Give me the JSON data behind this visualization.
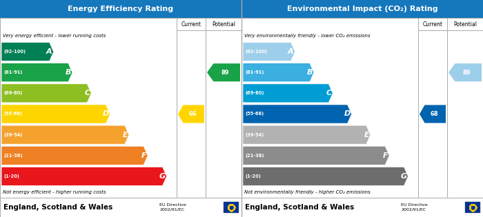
{
  "left_title": "Energy Efficiency Rating",
  "right_title": "Environmental Impact (CO₂) Rating",
  "header_bg": "#1577bc",
  "bands": [
    {
      "label": "A",
      "range": "(92-100)",
      "epc_color": "#008054",
      "co2_color": "#9ecfea"
    },
    {
      "label": "B",
      "range": "(81-91)",
      "epc_color": "#19a247",
      "co2_color": "#3aafe0"
    },
    {
      "label": "C",
      "range": "(69-80)",
      "epc_color": "#8dbe22",
      "co2_color": "#009dd4"
    },
    {
      "label": "D",
      "range": "(55-68)",
      "epc_color": "#ffd500",
      "co2_color": "#0063af"
    },
    {
      "label": "E",
      "range": "(39-54)",
      "epc_color": "#f5a12e",
      "co2_color": "#b2b2b2"
    },
    {
      "label": "F",
      "range": "(21-38)",
      "epc_color": "#ef8023",
      "co2_color": "#8c8c8c"
    },
    {
      "label": "G",
      "range": "(1-20)",
      "epc_color": "#e9161c",
      "co2_color": "#6d6d6d"
    }
  ],
  "epc_current": 66,
  "epc_potential": 89,
  "co2_current": 68,
  "co2_potential": 89,
  "current_color_epc": "#ffd500",
  "potential_color_epc": "#19a247",
  "current_color_co2": "#0063af",
  "potential_color_co2": "#9ecfea",
  "footer_text": "England, Scotland & Wales",
  "eu_text": "EU Directive\n2002/91/EC",
  "top_text_epc": "Very energy efficient - lower running costs",
  "bottom_text_epc": "Not energy efficient - higher running costs",
  "top_text_co2": "Very environmentally friendly - lower CO₂ emissions",
  "bottom_text_co2": "Not environmentally friendly - higher CO₂ emissions",
  "band_ranges": [
    [
      92,
      100
    ],
    [
      81,
      91
    ],
    [
      69,
      80
    ],
    [
      55,
      68
    ],
    [
      39,
      54
    ],
    [
      21,
      38
    ],
    [
      1,
      20
    ]
  ]
}
